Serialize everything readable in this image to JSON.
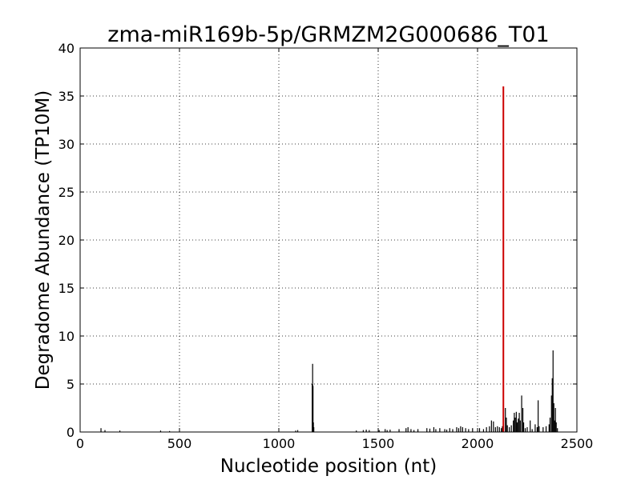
{
  "chart_data": {
    "type": "bar",
    "title": "zma-miR169b-5p/GRMZM2G000686_T01",
    "xlabel": "Nucleotide position (nt)",
    "ylabel": "Degradome Abundance (TP10M)",
    "xlim": [
      0,
      2500
    ],
    "ylim": [
      0,
      40
    ],
    "xticks": [
      0,
      500,
      1000,
      1500,
      2000,
      2500
    ],
    "yticks": [
      0,
      5,
      10,
      15,
      20,
      25,
      30,
      35,
      40
    ],
    "grid": true,
    "series": [
      {
        "color": "#000000",
        "points": [
          [
            105,
            0.4
          ],
          [
            125,
            0.2
          ],
          [
            200,
            0.15
          ],
          [
            405,
            0.15
          ],
          [
            450,
            0.1
          ],
          [
            1085,
            0.15
          ],
          [
            1095,
            0.2
          ],
          [
            1168,
            5.0
          ],
          [
            1170,
            7.1
          ],
          [
            1172,
            4.8
          ],
          [
            1174,
            1.0
          ],
          [
            1176,
            0.5
          ],
          [
            1390,
            0.15
          ],
          [
            1425,
            0.2
          ],
          [
            1440,
            0.25
          ],
          [
            1455,
            0.2
          ],
          [
            1505,
            0.2
          ],
          [
            1535,
            0.3
          ],
          [
            1545,
            0.2
          ],
          [
            1560,
            0.25
          ],
          [
            1605,
            0.3
          ],
          [
            1640,
            0.4
          ],
          [
            1650,
            0.5
          ],
          [
            1665,
            0.3
          ],
          [
            1680,
            0.2
          ],
          [
            1700,
            0.3
          ],
          [
            1745,
            0.4
          ],
          [
            1760,
            0.35
          ],
          [
            1780,
            0.5
          ],
          [
            1790,
            0.3
          ],
          [
            1810,
            0.4
          ],
          [
            1835,
            0.3
          ],
          [
            1845,
            0.25
          ],
          [
            1860,
            0.4
          ],
          [
            1875,
            0.3
          ],
          [
            1895,
            0.5
          ],
          [
            1905,
            0.4
          ],
          [
            1915,
            0.6
          ],
          [
            1925,
            0.5
          ],
          [
            1940,
            0.4
          ],
          [
            1955,
            0.3
          ],
          [
            1975,
            0.4
          ],
          [
            2010,
            0.4
          ],
          [
            2030,
            0.3
          ],
          [
            2045,
            0.5
          ],
          [
            2060,
            0.6
          ],
          [
            2070,
            1.2
          ],
          [
            2080,
            1.1
          ],
          [
            2090,
            0.5
          ],
          [
            2100,
            0.6
          ],
          [
            2110,
            0.5
          ],
          [
            2120,
            0.4
          ],
          [
            2125,
            0.6
          ],
          [
            2140,
            2.5
          ],
          [
            2145,
            1.5
          ],
          [
            2150,
            0.7
          ],
          [
            2160,
            0.5
          ],
          [
            2170,
            0.7
          ],
          [
            2180,
            1.2
          ],
          [
            2185,
            2.0
          ],
          [
            2190,
            1.5
          ],
          [
            2195,
            2.1
          ],
          [
            2200,
            1.0
          ],
          [
            2205,
            1.4
          ],
          [
            2210,
            2.0
          ],
          [
            2215,
            1.2
          ],
          [
            2222,
            3.8
          ],
          [
            2228,
            2.5
          ],
          [
            2232,
            1.0
          ],
          [
            2240,
            0.4
          ],
          [
            2250,
            0.5
          ],
          [
            2265,
            1.2
          ],
          [
            2275,
            0.3
          ],
          [
            2290,
            0.8
          ],
          [
            2300,
            0.5
          ],
          [
            2305,
            3.3
          ],
          [
            2310,
            0.6
          ],
          [
            2330,
            0.5
          ],
          [
            2345,
            0.6
          ],
          [
            2360,
            0.8
          ],
          [
            2365,
            1.5
          ],
          [
            2372,
            3.8
          ],
          [
            2376,
            5.6
          ],
          [
            2380,
            8.5
          ],
          [
            2384,
            3.0
          ],
          [
            2388,
            1.2
          ],
          [
            2392,
            2.5
          ],
          [
            2396,
            1.0
          ],
          [
            2402,
            0.4
          ]
        ]
      },
      {
        "color": "#cc0000",
        "points": [
          [
            2130,
            36.0
          ]
        ]
      }
    ]
  }
}
